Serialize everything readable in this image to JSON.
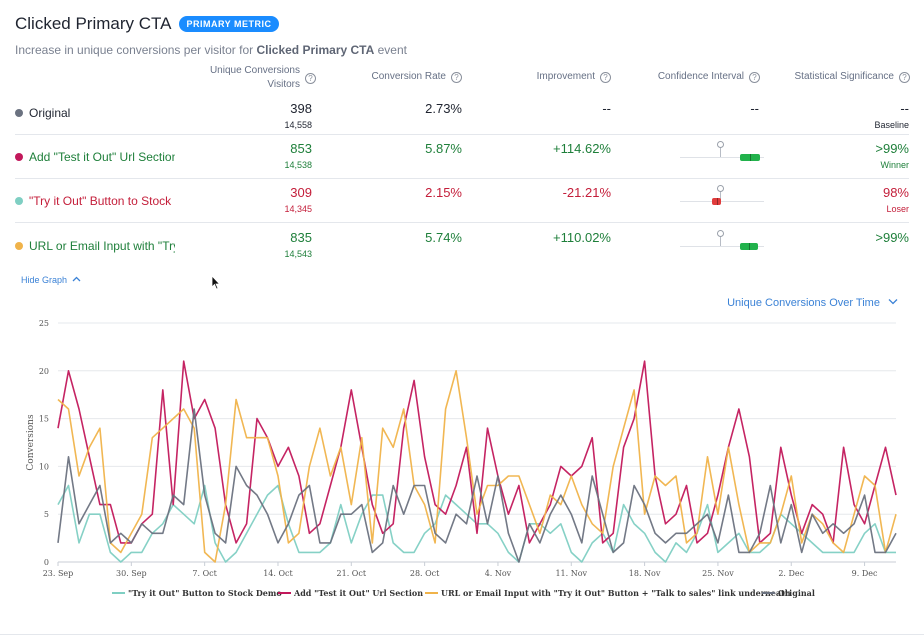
{
  "header": {
    "title": "Clicked Primary CTA",
    "badge": "PRIMARY METRIC",
    "subtitle_prefix": "Increase in unique conversions per visitor for ",
    "subtitle_bold": "Clicked Primary CTA",
    "subtitle_suffix": " event"
  },
  "columns": {
    "unique_conversions_line1": "Unique Conversions",
    "unique_conversions_line2": "Visitors",
    "conversion_rate": "Conversion Rate",
    "improvement": "Improvement",
    "confidence_interval": "Confidence Interval",
    "statistical_significance": "Statistical Significance",
    "help_icon_glyph": "?"
  },
  "variations": [
    {
      "name": "Original",
      "color": "#6b7280",
      "conversions": "398",
      "visitors": "14,558",
      "rate": "2.73%",
      "improvement": "--",
      "ci": "--",
      "significance": "--",
      "status": "Baseline"
    },
    {
      "name": "Add \"Test it Out\" Url Section",
      "color": "#c2185b",
      "conversions": "853",
      "visitors": "14,538",
      "rate": "5.87%",
      "improvement": "+114.62%",
      "significance": ">99%",
      "status": "Winner",
      "ci_range": [
        0.72,
        0.95
      ],
      "ci_color": "#22b24c"
    },
    {
      "name": "\"Try it Out\" Button to Stock Demo",
      "color": "#7fcfc3",
      "conversions": "309",
      "visitors": "14,345",
      "rate": "2.15%",
      "improvement": "-21.21%",
      "significance": "98%",
      "status": "Loser",
      "ci_range": [
        0.38,
        0.49
      ],
      "ci_color": "#e03c3c"
    },
    {
      "name": "URL or Email Input with \"Try it Out\" Button + \"Talk to sales\" link underneath",
      "color": "#f0b34a",
      "conversions": "835",
      "visitors": "14,543",
      "rate": "5.74%",
      "improvement": "+110.02%",
      "significance": ">99%",
      "status": "",
      "ci_range": [
        0.71,
        0.93
      ],
      "ci_color": "#22b24c"
    }
  ],
  "controls": {
    "hide_graph": "Hide Graph",
    "chart_selector": "Unique Conversions Over Time"
  },
  "chart_data": {
    "type": "line",
    "title": "Unique Conversions Over Time",
    "ylabel": "Conversions",
    "xlabel": "",
    "ylim": [
      0,
      25
    ],
    "yticks": [
      0,
      5,
      10,
      15,
      20,
      25
    ],
    "xtick_labels": [
      "23. Sep",
      "30. Sep",
      "7. Oct",
      "14. Oct",
      "21. Oct",
      "28. Oct",
      "4. Nov",
      "11. Nov",
      "18. Nov",
      "25. Nov",
      "2. Dec",
      "9. Dec"
    ],
    "xtick_every": 7,
    "n_days": 81,
    "legend_position": "bottom",
    "series": [
      {
        "name": "\"Try it Out\" Button to Stock Demo",
        "color": "#7fcfc3",
        "values": [
          6,
          8,
          2,
          5,
          5,
          1,
          0,
          1,
          1,
          3,
          4,
          6,
          5,
          4,
          8,
          2,
          0,
          1,
          3,
          5,
          7,
          8,
          4,
          1,
          1,
          1,
          2,
          6,
          2,
          5,
          7,
          7,
          2,
          1,
          1,
          3,
          4,
          7,
          6,
          5,
          4,
          4,
          3,
          1,
          0,
          4,
          4,
          3,
          4,
          1,
          0,
          2,
          3,
          1,
          6,
          4,
          3,
          1,
          0,
          2,
          1,
          3,
          6,
          1,
          2,
          3,
          1,
          1,
          2,
          5,
          4,
          3,
          2,
          1,
          1,
          1,
          1,
          3,
          4,
          1,
          1
        ]
      },
      {
        "name": "Add \"Test it Out\" Url Section",
        "color": "#c2185b",
        "values": [
          14,
          20,
          16,
          11,
          6,
          6,
          2,
          2,
          4,
          5,
          18,
          6,
          21,
          15,
          17,
          14,
          6,
          2,
          4,
          15,
          13,
          10,
          12,
          9,
          3,
          4,
          8,
          12,
          18,
          12,
          6,
          3,
          4,
          14,
          19,
          11,
          6,
          5,
          8,
          12,
          3,
          14,
          9,
          5,
          8,
          2,
          4,
          6,
          10,
          9,
          10,
          13,
          2,
          3,
          12,
          15,
          21,
          9,
          4,
          5,
          8,
          2,
          3,
          7,
          12,
          16,
          11,
          2,
          3,
          12,
          7,
          3,
          6,
          5,
          2,
          12,
          6,
          4,
          8,
          12,
          7
        ]
      },
      {
        "name": "URL or Email Input with \"Try it Out\" Button + \"Talk to sales\" link underneath",
        "color": "#f0b34a",
        "values": [
          17,
          16,
          9,
          12,
          14,
          2,
          1,
          3,
          5,
          13,
          14,
          15,
          16,
          14,
          1,
          0,
          6,
          17,
          13,
          13,
          13,
          9,
          2,
          3,
          10,
          14,
          9,
          12,
          6,
          13,
          2,
          14,
          12,
          16,
          8,
          6,
          2,
          16,
          20,
          13,
          5,
          8,
          8,
          9,
          9,
          6,
          3,
          7,
          6,
          9,
          6,
          4,
          3,
          10,
          14,
          18,
          5,
          9,
          8,
          9,
          2,
          3,
          11,
          5,
          12,
          6,
          1,
          2,
          2,
          5,
          9,
          2,
          5,
          4,
          2,
          1,
          5,
          9,
          8,
          1,
          5
        ]
      },
      {
        "name": "Original",
        "color": "#6b7280",
        "values": [
          2,
          11,
          4,
          6,
          8,
          2,
          3,
          2,
          4,
          3,
          3,
          7,
          6,
          16,
          7,
          3,
          2,
          10,
          8,
          7,
          5,
          2,
          4,
          7,
          8,
          2,
          2,
          5,
          5,
          6,
          1,
          2,
          8,
          5,
          8,
          8,
          3,
          2,
          5,
          4,
          9,
          4,
          9,
          3,
          0,
          4,
          2,
          5,
          7,
          5,
          2,
          9,
          5,
          1,
          2,
          8,
          6,
          3,
          2,
          3,
          3,
          4,
          5,
          2,
          7,
          1,
          1,
          3,
          8,
          2,
          6,
          1,
          5,
          3,
          4,
          3,
          4,
          7,
          1,
          1,
          3
        ]
      }
    ]
  }
}
